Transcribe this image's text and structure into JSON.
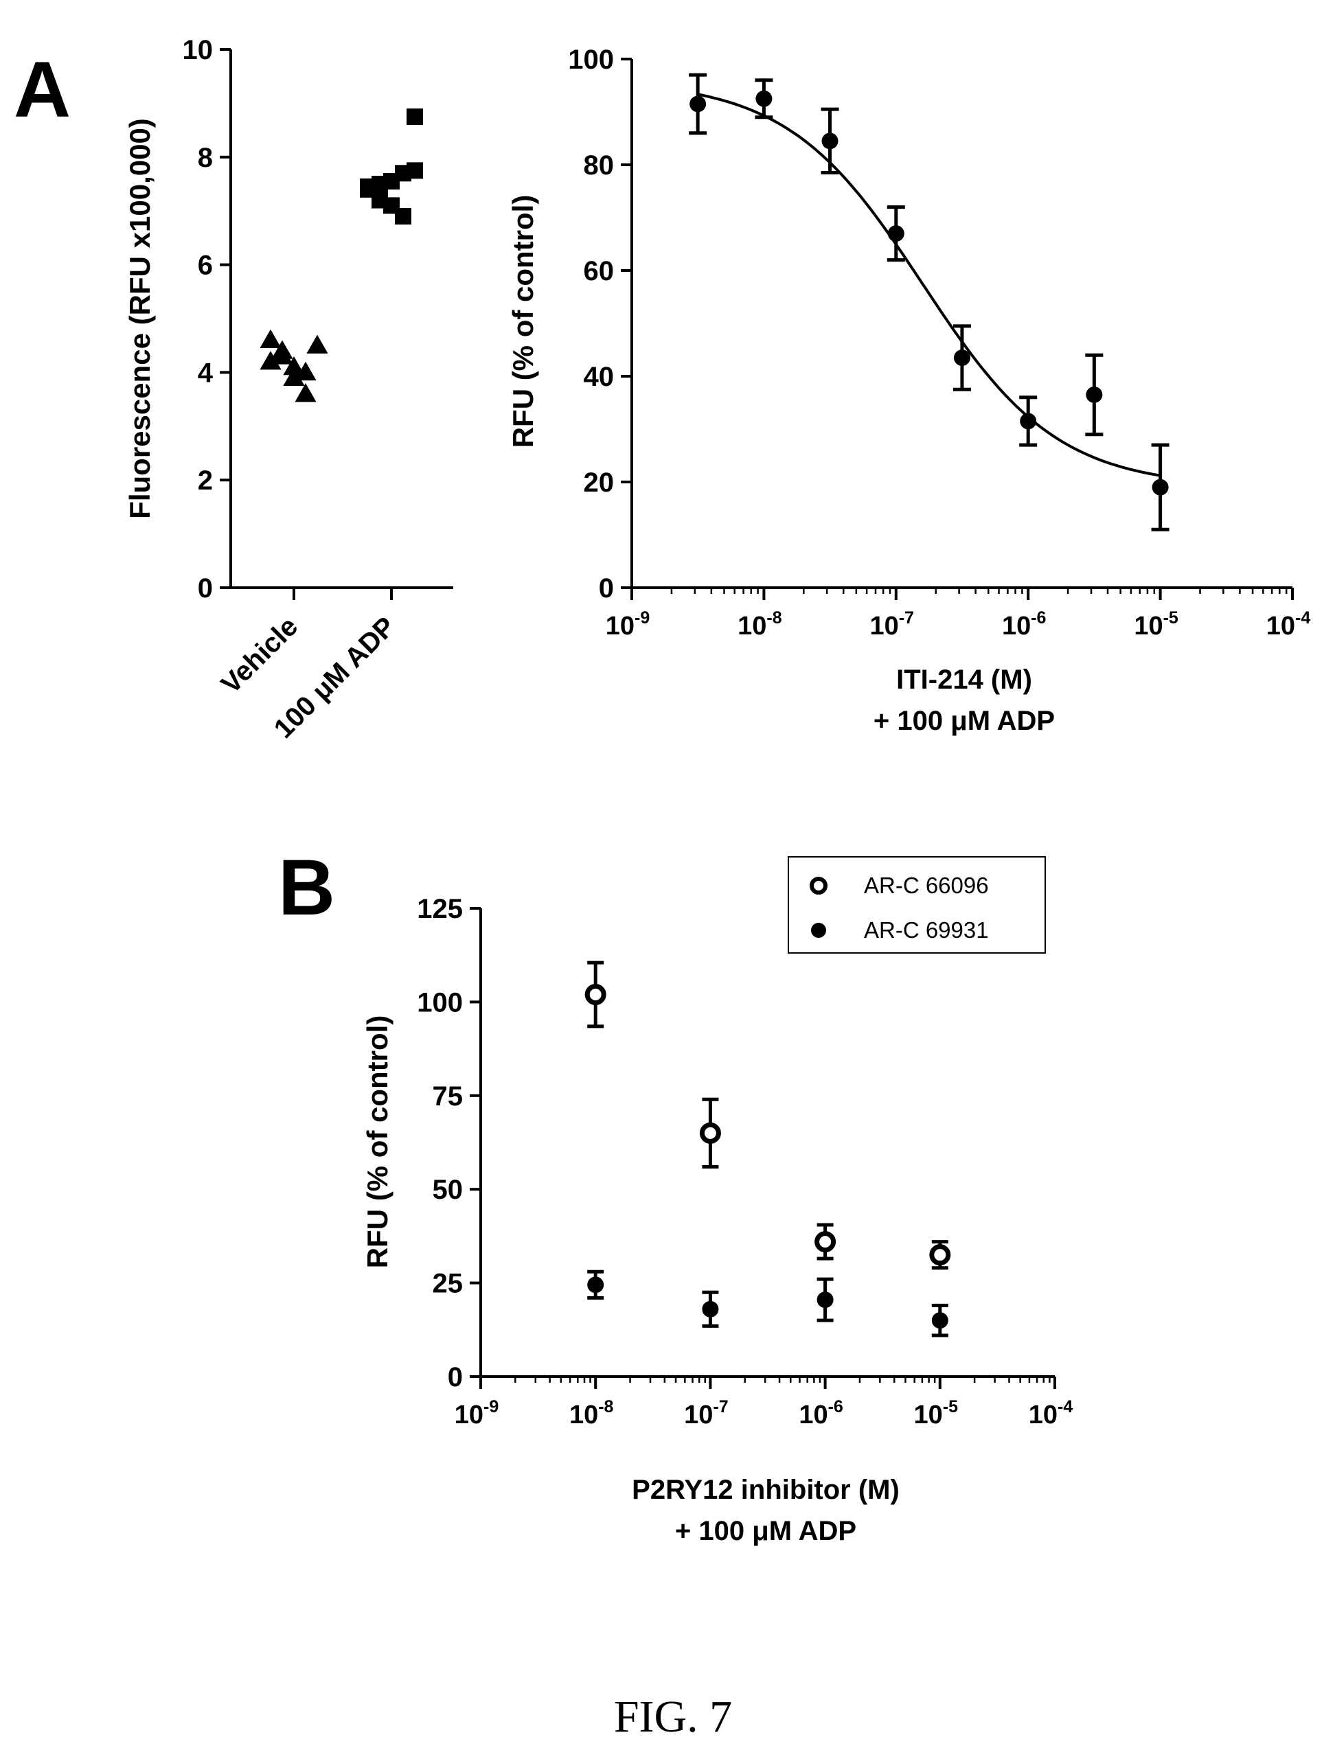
{
  "caption": "FIG. 7",
  "colors": {
    "ink": "#000000",
    "background": "#ffffff"
  },
  "chart_data": [
    {
      "id": "A-left",
      "panel_label": "A",
      "type": "scatter",
      "categories": [
        "Vehicle",
        "100 μM ADP"
      ],
      "ylabel": "Fluorescence (RFU x100,000)",
      "ylim": [
        0,
        10
      ],
      "yticks": [
        "0",
        "2",
        "4",
        "6",
        "8",
        "10"
      ],
      "series": [
        {
          "category": "Vehicle",
          "marker": "triangle",
          "values": [
            4.2,
            4.3,
            4.1,
            4.0,
            4.5,
            4.6,
            4.4,
            3.9,
            3.6
          ]
        },
        {
          "category": "100 μM ADP",
          "marker": "square",
          "values": [
            7.45,
            7.5,
            7.55,
            7.7,
            7.75,
            7.4,
            7.2,
            7.1,
            6.9,
            8.75
          ]
        }
      ]
    },
    {
      "id": "A-right",
      "type": "line",
      "xscale": "log",
      "xlabel": "ITI-214 (M)",
      "xlabel2": "+ 100 μM ADP",
      "ylabel": "RFU (% of control)",
      "xlim": [
        1e-09,
        0.0001
      ],
      "ylim": [
        0,
        100
      ],
      "yticks": [
        "0",
        "20",
        "40",
        "60",
        "80",
        "100"
      ],
      "xticks": [
        "10-9",
        "10-8",
        "10-7",
        "10-6",
        "10-5",
        "10-4"
      ],
      "series": [
        {
          "marker": "filled-circle",
          "x": [
            3.16e-09,
            1e-08,
            3.16e-08,
            1e-07,
            3.16e-07,
            1e-06,
            3.16e-06,
            1e-05
          ],
          "y": [
            91.5,
            92.5,
            84.5,
            67,
            43.5,
            31.5,
            36.5,
            19
          ],
          "err": [
            5.5,
            3.5,
            6,
            5,
            6,
            4.5,
            7.5,
            8
          ]
        }
      ],
      "fit": {
        "type": "sigmoidal",
        "top": 96,
        "bottom": 19,
        "log_ic50": -6.8,
        "hill": -0.85
      }
    },
    {
      "id": "B",
      "panel_label": "B",
      "type": "scatter",
      "xscale": "log",
      "xlabel": "P2RY12 inhibitor (M)",
      "xlabel2": "+ 100 μM ADP",
      "ylabel": "RFU (% of control)",
      "xlim": [
        1e-09,
        0.0001
      ],
      "ylim": [
        0,
        125
      ],
      "yticks": [
        "0",
        "25",
        "50",
        "75",
        "100",
        "125"
      ],
      "xticks": [
        "10-9",
        "10-8",
        "10-7",
        "10-6",
        "10-5",
        "10-4"
      ],
      "legend": "top-right",
      "series": [
        {
          "name": "AR-C 66096",
          "marker": "open-circle",
          "x": [
            1e-08,
            1e-07,
            1e-06,
            1e-05
          ],
          "y": [
            102,
            65,
            36,
            32.5
          ],
          "err": [
            8.5,
            9,
            4.5,
            3.5
          ]
        },
        {
          "name": "AR-C 69931",
          "marker": "filled-circle",
          "x": [
            1e-08,
            1e-07,
            1e-06,
            1e-05
          ],
          "y": [
            24.5,
            18,
            20.5,
            15
          ],
          "err": [
            3.5,
            4.5,
            5.5,
            4
          ]
        }
      ]
    }
  ]
}
